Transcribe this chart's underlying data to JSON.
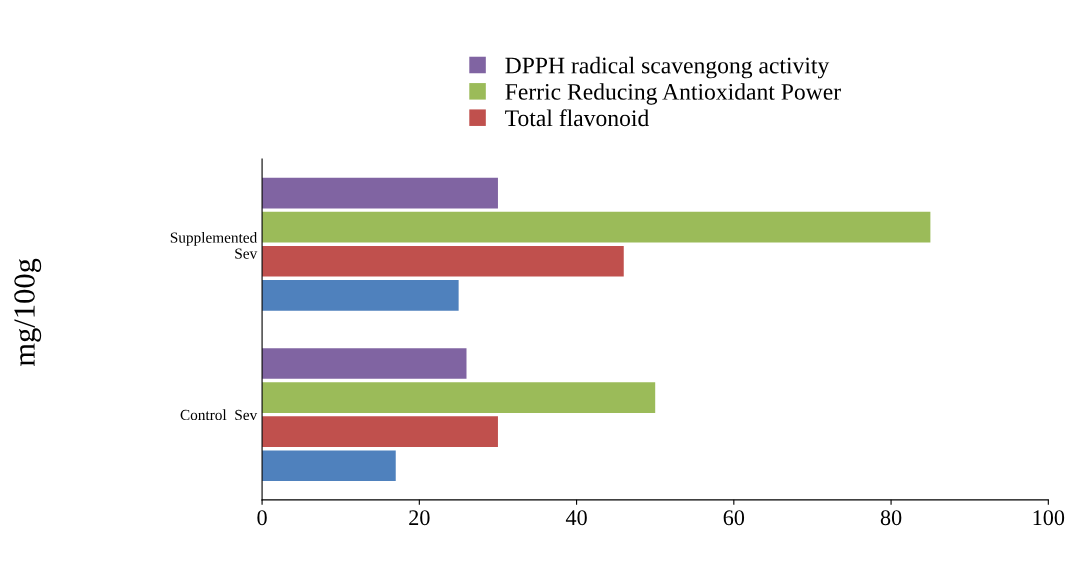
{
  "chart_data": {
    "type": "bar",
    "orientation": "horizontal",
    "ylabel": "mg/100g",
    "categories": [
      "Supplemented\nSev",
      "Control  Sev"
    ],
    "series": [
      {
        "name": "DPPH radical scavengong activity",
        "color": "#8064a2",
        "values": [
          30,
          26
        ]
      },
      {
        "name": "Ferric Reducing Antioxidant Power",
        "color": "#9bbb59",
        "values": [
          85,
          50
        ]
      },
      {
        "name": "Total flavonoid",
        "color": "#c0504d",
        "values": [
          46,
          30
        ]
      },
      {
        "color": "#4f81bd",
        "values": [
          25,
          17
        ]
      }
    ],
    "xlim": [
      0,
      100
    ],
    "xticks": [
      0,
      20,
      40,
      60,
      80,
      100
    ],
    "grid": false,
    "legend": "top"
  }
}
